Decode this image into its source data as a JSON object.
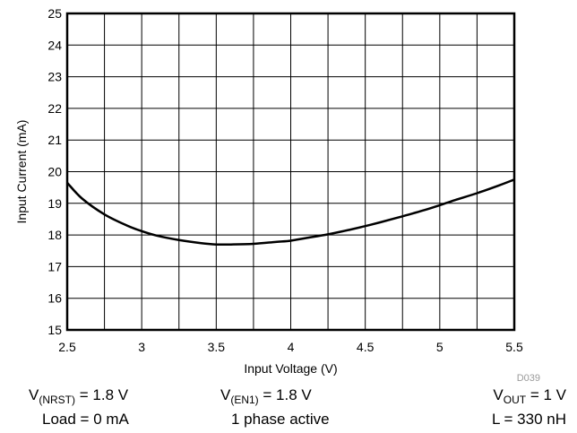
{
  "chart_data": {
    "type": "line",
    "title": "",
    "xlabel": "Input Voltage (V)",
    "ylabel": "Input Current (mA)",
    "xlim": [
      2.5,
      5.5
    ],
    "ylim": [
      15,
      25
    ],
    "x_ticks": [
      2.5,
      2.75,
      3,
      3.25,
      3.5,
      3.75,
      4,
      4.25,
      4.5,
      4.75,
      5,
      5.25,
      5.5
    ],
    "x_tick_labels": [
      "2.5",
      "",
      "3",
      "",
      "3.5",
      "",
      "4",
      "",
      "4.5",
      "",
      "5",
      "",
      "5.5"
    ],
    "y_ticks": [
      15,
      16,
      17,
      18,
      19,
      20,
      21,
      22,
      23,
      24,
      25
    ],
    "y_tick_labels": [
      "15",
      "16",
      "17",
      "18",
      "19",
      "20",
      "21",
      "22",
      "23",
      "24",
      "25"
    ],
    "grid": true,
    "line_color": "#000000",
    "series": [
      {
        "x": [
          2.5,
          2.6,
          2.75,
          2.9,
          3.0,
          3.1,
          3.25,
          3.4,
          3.5,
          3.6,
          3.75,
          3.9,
          4.0,
          4.1,
          4.25,
          4.4,
          4.5,
          4.6,
          4.75,
          4.9,
          5.0,
          5.1,
          5.25,
          5.4,
          5.5
        ],
        "values": [
          19.65,
          19.15,
          18.65,
          18.3,
          18.12,
          17.98,
          17.84,
          17.74,
          17.7,
          17.7,
          17.72,
          17.78,
          17.82,
          17.9,
          18.02,
          18.17,
          18.28,
          18.4,
          18.59,
          18.79,
          18.94,
          19.1,
          19.32,
          19.57,
          19.75
        ]
      }
    ],
    "code": "D039"
  },
  "conditions": {
    "v_nrst_main": "V",
    "v_nrst_sub": "(NRST)",
    "v_nrst_value": " = 1.8 V",
    "v_en1_main": "V",
    "v_en1_sub": "(EN1)",
    "v_en1_value": " = 1.8 V",
    "v_out_main": "V",
    "v_out_sub": "OUT",
    "v_out_value": " = 1 V",
    "load": "Load = 0 mA",
    "phase": "1 phase active",
    "inductor": "L = 330 nH"
  }
}
